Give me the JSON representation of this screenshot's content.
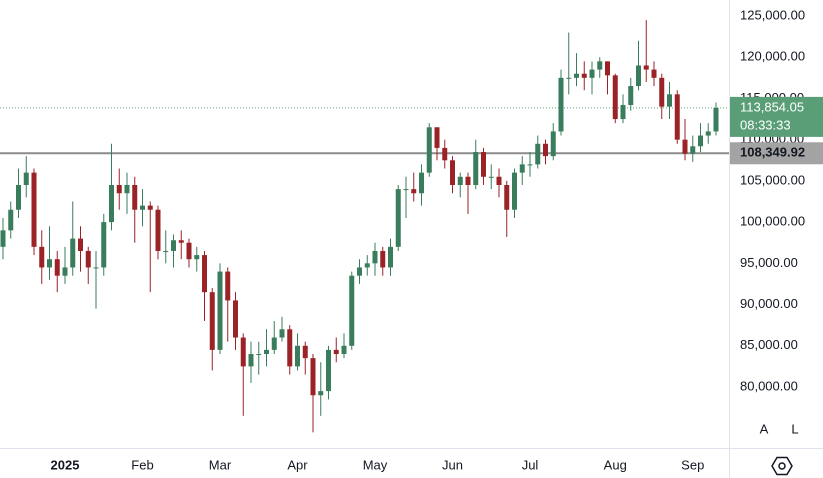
{
  "chart_data": {
    "type": "candlestick",
    "categories": [
      null,
      null,
      null,
      null,
      null,
      null,
      null,
      null,
      "2025",
      null,
      null,
      null,
      null,
      null,
      null,
      null,
      null,
      null,
      "Feb",
      null,
      null,
      null,
      null,
      null,
      null,
      null,
      null,
      null,
      "Mar",
      null,
      null,
      null,
      null,
      null,
      null,
      null,
      null,
      null,
      "Apr",
      null,
      null,
      null,
      null,
      null,
      null,
      null,
      null,
      null,
      "May",
      null,
      null,
      null,
      null,
      null,
      null,
      null,
      null,
      null,
      "Jun",
      null,
      null,
      null,
      null,
      null,
      null,
      null,
      null,
      null,
      "Jul",
      null,
      null,
      null,
      null,
      null,
      null,
      null,
      null,
      null,
      null,
      "Aug",
      null,
      null,
      null,
      null,
      null,
      null,
      null,
      null,
      null,
      "Sep",
      null,
      null,
      null
    ],
    "open": [
      97000,
      99000,
      101500,
      104500,
      106000,
      97000,
      94500,
      95500,
      93500,
      94500,
      98000,
      96500,
      94500,
      94500,
      100000,
      104500,
      103500,
      104500,
      101500,
      102000,
      101500,
      96500,
      96500,
      97800,
      97500,
      95500,
      96000,
      91500,
      84500,
      94000,
      90500,
      86000,
      82500,
      84000,
      84000,
      84500,
      86000,
      87000,
      82500,
      85000,
      83500,
      79000,
      79500,
      84500,
      84000,
      85000,
      93500,
      94500,
      95000,
      96500,
      94500,
      97000,
      104000,
      104000,
      103500,
      106000,
      111500,
      109000,
      107500,
      104500,
      105500,
      104500,
      108500,
      105500,
      105500,
      104500,
      101500,
      106000,
      107000,
      107000,
      109500,
      108000,
      111000,
      117500,
      117500,
      118000,
      117500,
      118500,
      119500,
      117800,
      112500,
      114200,
      116500,
      119000,
      118500,
      117500,
      114000,
      115500,
      110000,
      108300,
      109200,
      110500,
      111000
    ],
    "high": [
      100500,
      102500,
      106500,
      108000,
      106500,
      99000,
      99500,
      96500,
      97000,
      102500,
      99500,
      97000,
      96500,
      101000,
      109500,
      106500,
      106000,
      105500,
      104000,
      102500,
      102000,
      99000,
      98500,
      99000,
      98000,
      97000,
      96500,
      92000,
      95000,
      94500,
      91500,
      86500,
      85500,
      85500,
      87000,
      88000,
      88500,
      87500,
      86500,
      85500,
      84000,
      83000,
      85000,
      86000,
      86500,
      94000,
      95500,
      96000,
      97500,
      97000,
      98000,
      104500,
      105500,
      106000,
      107000,
      112000,
      111500,
      110000,
      108000,
      106000,
      106000,
      110000,
      109000,
      107000,
      106500,
      105000,
      106500,
      108000,
      108500,
      110500,
      110000,
      112000,
      118500,
      123000,
      120500,
      119500,
      119500,
      120000,
      119500,
      118000,
      115500,
      117500,
      122000,
      124500,
      119500,
      118000,
      117000,
      116000,
      112500,
      110500,
      112000,
      112000,
      114500
    ],
    "low": [
      95500,
      98000,
      100500,
      103000,
      96000,
      92500,
      93000,
      91500,
      92500,
      93500,
      94000,
      92500,
      89500,
      93500,
      99000,
      101500,
      101000,
      97500,
      99500,
      91500,
      95500,
      95000,
      94500,
      95500,
      94500,
      94000,
      88000,
      82000,
      84000,
      85500,
      84500,
      76500,
      80500,
      81500,
      82500,
      84000,
      85500,
      81500,
      82000,
      81500,
      74500,
      76500,
      78500,
      83000,
      83500,
      84500,
      92500,
      93500,
      93500,
      93500,
      93500,
      96500,
      100500,
      102500,
      102000,
      105500,
      107500,
      106500,
      103500,
      103000,
      101000,
      104000,
      104500,
      104000,
      103000,
      98200,
      100500,
      104500,
      105500,
      106500,
      107000,
      107500,
      110500,
      115500,
      116500,
      116000,
      115500,
      117500,
      115500,
      112000,
      112000,
      113500,
      116000,
      117000,
      116500,
      112500,
      112500,
      109500,
      107500,
      107300,
      108500,
      109500,
      110500
    ],
    "close": [
      99000,
      101500,
      104500,
      106000,
      97000,
      94500,
      95500,
      93500,
      94500,
      98000,
      96500,
      94500,
      94500,
      100000,
      104500,
      103500,
      104500,
      101500,
      102000,
      101500,
      96500,
      96500,
      97800,
      97500,
      95500,
      96000,
      91500,
      84500,
      94000,
      90500,
      86000,
      82500,
      84000,
      84000,
      84500,
      86000,
      87000,
      82500,
      85000,
      83500,
      79000,
      79500,
      84500,
      84000,
      85000,
      93500,
      94500,
      95000,
      96500,
      94500,
      97000,
      104000,
      104000,
      103500,
      106000,
      111500,
      109000,
      107500,
      104500,
      105500,
      104500,
      108500,
      105500,
      105500,
      104500,
      101500,
      106000,
      107000,
      107000,
      109500,
      108000,
      111000,
      117500,
      117500,
      118000,
      117500,
      118500,
      119500,
      117800,
      112500,
      114200,
      116500,
      119000,
      118500,
      117500,
      114000,
      115500,
      110000,
      108300,
      109200,
      110500,
      111000,
      113854.05
    ],
    "up_color": "#3a7d5c",
    "down_color": "#9b2226",
    "ylim": [
      72600,
      126940
    ],
    "yticks": [
      {
        "value": 80000,
        "label": "80,000.00"
      },
      {
        "value": 85000,
        "label": "85,000.00"
      },
      {
        "value": 90000,
        "label": "90,000.00"
      },
      {
        "value": 95000,
        "label": "95,000.00"
      },
      {
        "value": 100000,
        "label": "100,000.00"
      },
      {
        "value": 105000,
        "label": "105,000.00"
      },
      {
        "value": 110000,
        "label": "110,000.00"
      },
      {
        "value": 115000,
        "label": "115,000.00"
      },
      {
        "value": 120000,
        "label": "120,000.00"
      },
      {
        "value": 125000,
        "label": "125,000.00"
      }
    ],
    "grid": false,
    "horizontal_line": {
      "value": 108349.92,
      "label": "108,349.92",
      "color": "#8c8c8c"
    },
    "last_price": {
      "value": 113854.05,
      "label": "113,854.05",
      "countdown": "08:33:33",
      "color": "#5a9e78"
    },
    "buttons": [
      "A",
      "L"
    ]
  }
}
